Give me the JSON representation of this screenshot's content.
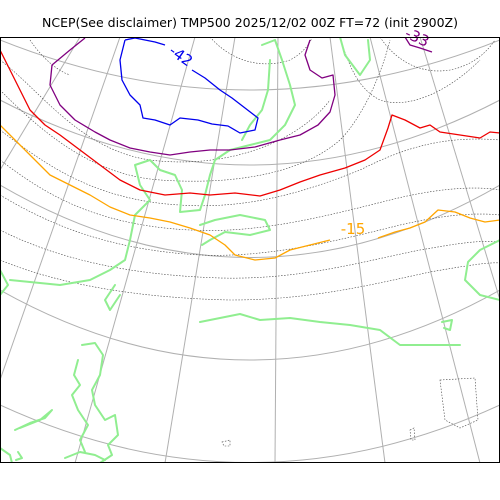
{
  "title": "NCEP(See disclaimer) TMP500 2025/12/02 00Z FT=72 (init 2900Z)",
  "colors": {
    "graticule": "#b0b0b0",
    "coastline": "#90ee90",
    "isotherm_dotted": "#444444",
    "contour_minus42": "#0000ee",
    "contour_purple": "#800080",
    "contour_red": "#ee0000",
    "contour_minus15": "#ffa500"
  },
  "contour_labels": {
    "blue": "-42",
    "purple": "-33",
    "orange": "-15"
  }
}
